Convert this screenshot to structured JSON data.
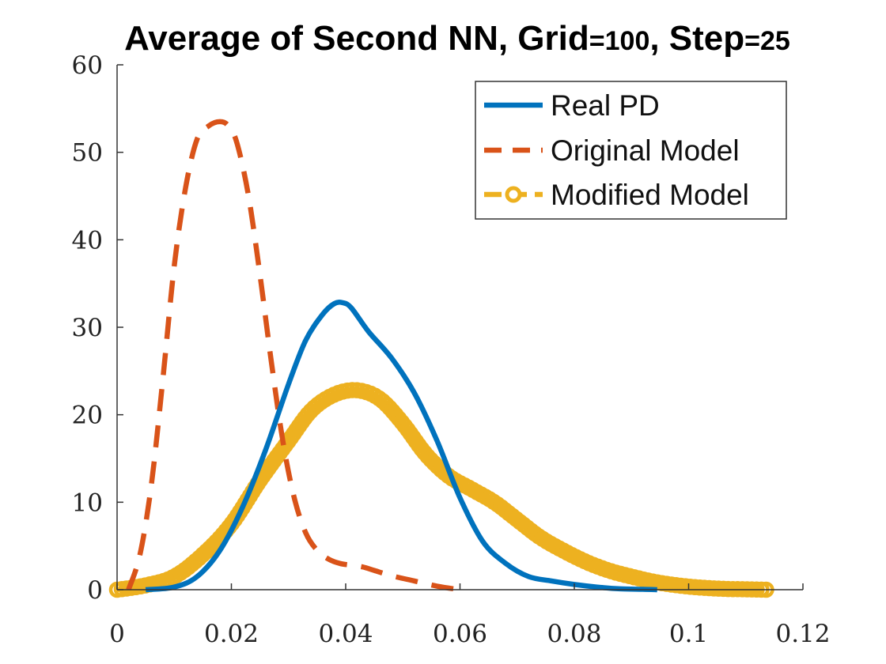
{
  "chart_data": {
    "type": "line",
    "title": {
      "parts": [
        {
          "text": "Average of Second NN, Grid",
          "small": false
        },
        {
          "text": "=100",
          "small": true
        },
        {
          "text": ", Step",
          "small": false
        },
        {
          "text": "=25",
          "small": true
        }
      ]
    },
    "xlabel": "",
    "ylabel": "",
    "xlim": [
      0,
      0.12
    ],
    "ylim": [
      0,
      60
    ],
    "x_ticks": [
      0,
      0.02,
      0.04,
      0.06,
      0.08,
      0.1,
      0.12
    ],
    "x_tick_labels": [
      "0",
      "0.02",
      "0.04",
      "0.06",
      "0.08",
      "0.1",
      "0.12"
    ],
    "y_ticks": [
      0,
      10,
      20,
      30,
      40,
      50,
      60
    ],
    "y_tick_labels": [
      "0",
      "10",
      "20",
      "30",
      "40",
      "50",
      "60"
    ],
    "grid": false,
    "legend_position": "top-right",
    "series": [
      {
        "name": "Real PD",
        "color": "#0072BD",
        "style": "solid",
        "x": [
          0.005,
          0.01,
          0.014,
          0.018,
          0.022,
          0.026,
          0.03,
          0.033,
          0.036,
          0.038,
          0.0395,
          0.041,
          0.044,
          0.048,
          0.052,
          0.056,
          0.06,
          0.064,
          0.068,
          0.072,
          0.076,
          0.08,
          0.084,
          0.088,
          0.092,
          0.0945
        ],
        "y": [
          0,
          0.3,
          1.5,
          4.5,
          9.5,
          16,
          23.5,
          28.5,
          31.5,
          32.7,
          32.8,
          32.2,
          29.5,
          26.5,
          22.5,
          17,
          10.5,
          5.5,
          3,
          1.5,
          1,
          0.6,
          0.3,
          0.1,
          0.05,
          0
        ]
      },
      {
        "name": "Original Model",
        "color": "#D95319",
        "style": "dashed",
        "x": [
          0.002,
          0.004,
          0.006,
          0.008,
          0.01,
          0.012,
          0.014,
          0.016,
          0.018,
          0.0195,
          0.021,
          0.023,
          0.025,
          0.027,
          0.029,
          0.031,
          0.033,
          0.035,
          0.037,
          0.039,
          0.041,
          0.043,
          0.045,
          0.048,
          0.052,
          0.056,
          0.06
        ],
        "y": [
          0,
          4,
          12,
          24,
          37,
          46,
          51.5,
          53,
          53.5,
          53,
          51,
          45,
          36,
          26,
          17,
          10.5,
          6.5,
          4.5,
          3.5,
          3,
          2.8,
          2.6,
          2.2,
          1.6,
          1,
          0.4,
          0
        ]
      },
      {
        "name": "Modified Model",
        "color": "#EDB120",
        "style": "dashed-markers",
        "x": [
          0,
          0.005,
          0.01,
          0.015,
          0.02,
          0.025,
          0.03,
          0.034,
          0.038,
          0.042,
          0.046,
          0.05,
          0.054,
          0.058,
          0.062,
          0.066,
          0.07,
          0.074,
          0.078,
          0.082,
          0.086,
          0.09,
          0.094,
          0.098,
          0.102,
          0.106,
          0.11,
          0.114
        ],
        "y": [
          0,
          0.5,
          1.5,
          4,
          7.5,
          12.5,
          17,
          20.5,
          22.3,
          22.8,
          21.8,
          19,
          15.5,
          13,
          11.5,
          10,
          8,
          6,
          4.5,
          3.2,
          2.2,
          1.5,
          0.9,
          0.5,
          0.25,
          0.1,
          0.05,
          0
        ]
      }
    ]
  }
}
